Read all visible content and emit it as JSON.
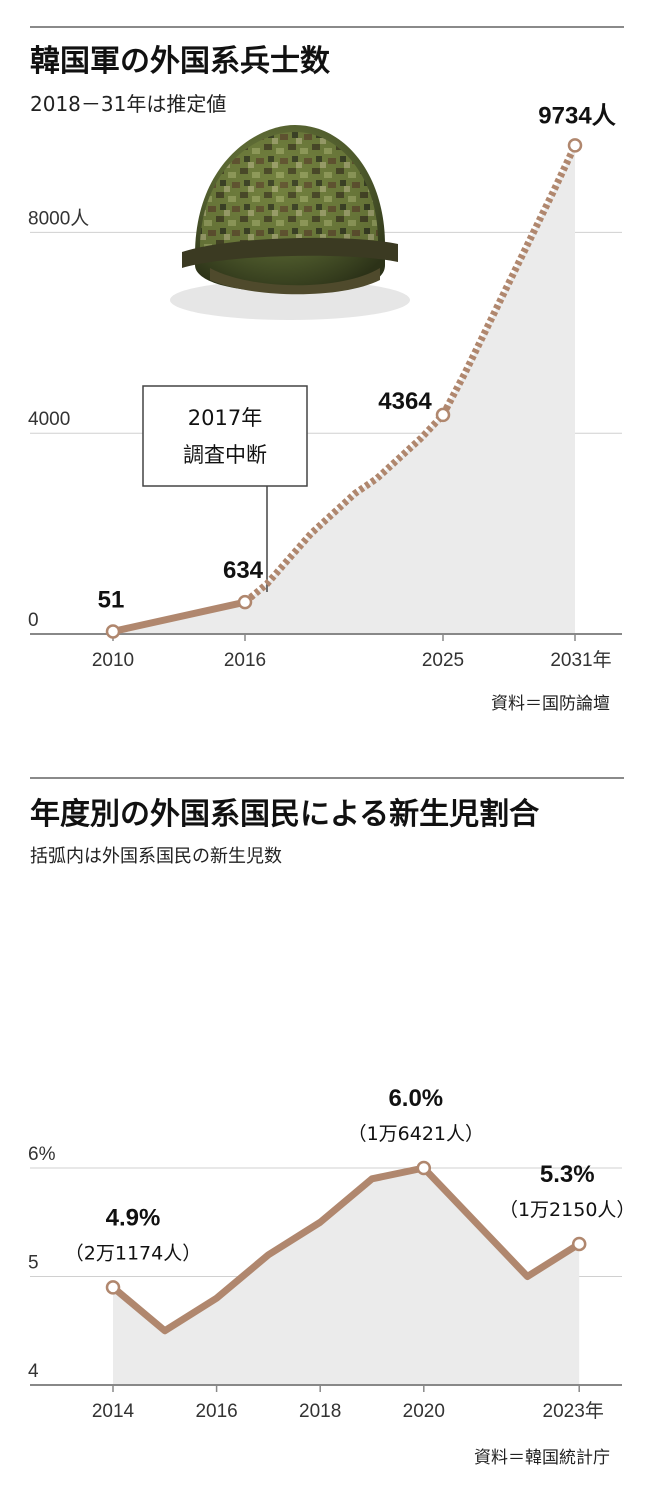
{
  "chart_data": [
    {
      "type": "line",
      "title": "韓国軍の外国系兵士数",
      "subtitle": "2018－31年は推定値",
      "source": "資料＝国防論壇",
      "x_ticks": [
        "2010",
        "2016",
        "2025",
        "2031年"
      ],
      "y_ticks": [
        "0",
        "4000",
        "8000人"
      ],
      "ylim": [
        0,
        9734
      ],
      "series": [
        {
          "style": "solid",
          "points": [
            {
              "x": 2010,
              "y": 51,
              "label": "51",
              "marker": true
            },
            {
              "x": 2016,
              "y": 634,
              "label": "634",
              "marker": true
            }
          ]
        },
        {
          "style": "dotted",
          "points": [
            {
              "x": 2016,
              "y": 634
            },
            {
              "x": 2017,
              "y": 1000
            },
            {
              "x": 2018,
              "y": 1500
            },
            {
              "x": 2019,
              "y": 2000
            },
            {
              "x": 2020,
              "y": 2400
            },
            {
              "x": 2021,
              "y": 2800
            },
            {
              "x": 2022,
              "y": 3100
            },
            {
              "x": 2023,
              "y": 3500
            },
            {
              "x": 2024,
              "y": 3900
            },
            {
              "x": 2025,
              "y": 4364,
              "label": "4364",
              "marker": true
            },
            {
              "x": 2026,
              "y": 5200
            },
            {
              "x": 2027,
              "y": 6100
            },
            {
              "x": 2028,
              "y": 7000
            },
            {
              "x": 2029,
              "y": 7900
            },
            {
              "x": 2030,
              "y": 8800
            },
            {
              "x": 2031,
              "y": 9734,
              "label": "9734人",
              "marker": true
            }
          ]
        }
      ],
      "annotation": {
        "line1": "2017年",
        "line2": "調査中断",
        "x": 2017
      },
      "grid": true,
      "image": "camouflage-helmet",
      "colors": {
        "line": "#b0876e",
        "area": "#ebebeb",
        "grid": "#d0d0d0",
        "axis": "#888888"
      }
    },
    {
      "type": "line",
      "title": "年度別の外国系国民による新生児割合",
      "subtitle": "括弧内は外国系国民の新生児数",
      "source": "資料＝韓国統計庁",
      "x_ticks": [
        "2014",
        "2016",
        "2018",
        "2020",
        "2023年"
      ],
      "y_ticks": [
        "4",
        "5",
        "6%"
      ],
      "ylim": [
        4,
        6
      ],
      "series": [
        {
          "style": "solid",
          "points": [
            {
              "x": 2014,
              "y": 4.9,
              "label": "4.9%",
              "sublabel": "（2万1174人）",
              "marker": true
            },
            {
              "x": 2015,
              "y": 4.5
            },
            {
              "x": 2016,
              "y": 4.8
            },
            {
              "x": 2017,
              "y": 5.2
            },
            {
              "x": 2018,
              "y": 5.5
            },
            {
              "x": 2019,
              "y": 5.9
            },
            {
              "x": 2020,
              "y": 6.0,
              "label": "6.0%",
              "sublabel": "（1万6421人）",
              "marker": true
            },
            {
              "x": 2021,
              "y": 5.5
            },
            {
              "x": 2022,
              "y": 5.0
            },
            {
              "x": 2023,
              "y": 5.3,
              "label": "5.3%",
              "sublabel": "（1万2150人）",
              "marker": true
            }
          ]
        }
      ],
      "grid": true,
      "colors": {
        "line": "#b0876e",
        "area": "#ebebeb",
        "grid": "#d0d0d0",
        "axis": "#888888"
      }
    }
  ]
}
